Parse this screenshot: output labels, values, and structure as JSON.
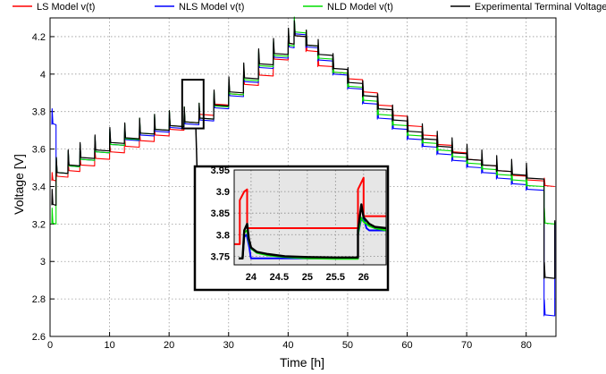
{
  "chart_data": [
    {
      "type": "line",
      "xlabel": "Time [h]",
      "ylabel": "Voltage [V]",
      "xlim": [
        0,
        85
      ],
      "ylim": [
        2.6,
        4.3
      ],
      "xticks": [
        "0",
        "10",
        "20",
        "30",
        "40",
        "50",
        "60",
        "70",
        "80"
      ],
      "yticks": [
        "2.6",
        "2.8",
        "3",
        "3.2",
        "3.4",
        "3.6",
        "3.8",
        "4",
        "4.2"
      ],
      "grid": true,
      "legend_position": "top",
      "colors": {
        "ls": "#ff0000",
        "nls": "#0000ff",
        "nld": "#00dd00",
        "exp": "#000000"
      },
      "series": [
        {
          "name": "LS Model v(t)",
          "color": "#ff0000",
          "x": [
            0.3,
            1,
            5,
            10,
            15,
            20,
            25,
            30,
            35,
            40,
            41,
            45,
            50,
            55,
            60,
            65,
            70,
            75,
            80,
            83,
            84.8
          ],
          "y": [
            3.43,
            3.45,
            3.51,
            3.58,
            3.64,
            3.7,
            3.78,
            3.89,
            3.99,
            4.16,
            4.2,
            4.04,
            3.97,
            3.83,
            3.72,
            3.62,
            3.54,
            3.48,
            3.43,
            3.4,
            3.4
          ]
        },
        {
          "name": "NLS Model v(t)",
          "color": "#0000ff",
          "x": [
            0.3,
            1,
            5,
            10,
            15,
            20,
            25,
            30,
            35,
            40,
            41,
            45,
            50,
            55,
            60,
            65,
            70,
            75,
            80,
            83,
            84.8
          ],
          "y": [
            3.73,
            3.47,
            3.54,
            3.62,
            3.67,
            3.71,
            3.75,
            3.88,
            4.03,
            4.14,
            4.21,
            4.07,
            3.92,
            3.76,
            3.65,
            3.57,
            3.5,
            3.44,
            3.38,
            2.71,
            3.21
          ]
        },
        {
          "name": "NLD Model v(t)",
          "color": "#00dd00",
          "x": [
            0.3,
            1,
            5,
            10,
            15,
            20,
            25,
            30,
            35,
            40,
            41,
            45,
            50,
            55,
            60,
            65,
            70,
            75,
            80,
            83,
            84.8
          ],
          "y": [
            3.2,
            3.47,
            3.54,
            3.62,
            3.68,
            3.72,
            3.76,
            3.89,
            4.04,
            4.15,
            4.22,
            4.08,
            3.93,
            3.78,
            3.67,
            3.59,
            3.52,
            3.46,
            3.4,
            3.2,
            3.21
          ]
        },
        {
          "name": "Experimental Terminal Voltage",
          "color": "#000000",
          "x": [
            0.3,
            1,
            5,
            10,
            15,
            20,
            25,
            30,
            35,
            40,
            41,
            45,
            50,
            55,
            60,
            65,
            70,
            75,
            80,
            83,
            84.8
          ],
          "y": [
            3.3,
            3.47,
            3.55,
            3.63,
            3.68,
            3.72,
            3.76,
            3.9,
            4.05,
            4.16,
            4.2,
            4.1,
            3.95,
            3.81,
            3.69,
            3.61,
            3.54,
            3.48,
            3.44,
            2.91,
            3.22
          ]
        }
      ]
    },
    {
      "type": "line",
      "xlim": [
        23.7,
        26.4
      ],
      "ylim": [
        3.73,
        3.95
      ],
      "xticks": [
        "24",
        "24.5",
        "25",
        "25.5",
        "26"
      ],
      "yticks": [
        "3.75",
        "3.8",
        "3.85",
        "3.9",
        "3.95"
      ],
      "grid": true,
      "series": [
        {
          "name": "LS Model v(t)",
          "color": "#ff0000",
          "x": [
            23.7,
            23.8,
            23.8,
            23.88,
            23.93,
            23.93,
            24.0,
            25.9,
            25.9,
            26.0,
            26.0,
            26.4
          ],
          "y": [
            3.778,
            3.778,
            3.88,
            3.9,
            3.905,
            3.815,
            3.815,
            3.815,
            3.905,
            3.932,
            3.843,
            3.843
          ]
        },
        {
          "name": "NLS Model v(t)",
          "color": "#0000ff",
          "x": [
            23.78,
            23.85,
            23.88,
            23.92,
            23.97,
            23.99,
            24.0,
            25.9,
            25.9,
            25.95,
            26.0,
            26.05,
            26.1,
            26.4
          ],
          "y": [
            3.745,
            3.745,
            3.795,
            3.8,
            3.77,
            3.75,
            3.745,
            3.745,
            3.8,
            3.833,
            3.84,
            3.815,
            3.81,
            3.81
          ]
        },
        {
          "name": "NLD Model v(t)",
          "color": "#00dd00",
          "x": [
            23.78,
            23.85,
            23.88,
            23.93,
            23.96,
            24.0,
            24.1,
            24.3,
            24.6,
            25.0,
            25.5,
            25.9,
            25.9,
            25.95,
            26.0,
            26.1,
            26.2,
            26.4
          ],
          "y": [
            3.745,
            3.745,
            3.805,
            3.81,
            3.785,
            3.768,
            3.758,
            3.752,
            3.748,
            3.745,
            3.744,
            3.744,
            3.8,
            3.84,
            3.83,
            3.82,
            3.815,
            3.81
          ]
        },
        {
          "name": "Experimental Terminal Voltage",
          "color": "#000000",
          "x": [
            23.78,
            23.85,
            23.88,
            23.93,
            23.96,
            24.0,
            24.1,
            24.3,
            24.6,
            25.0,
            25.5,
            25.9,
            25.9,
            25.96,
            26.0,
            26.1,
            26.2,
            26.4
          ],
          "y": [
            3.745,
            3.745,
            3.81,
            3.825,
            3.79,
            3.77,
            3.76,
            3.755,
            3.75,
            3.748,
            3.747,
            3.747,
            3.81,
            3.87,
            3.84,
            3.825,
            3.818,
            3.815
          ]
        }
      ]
    }
  ]
}
